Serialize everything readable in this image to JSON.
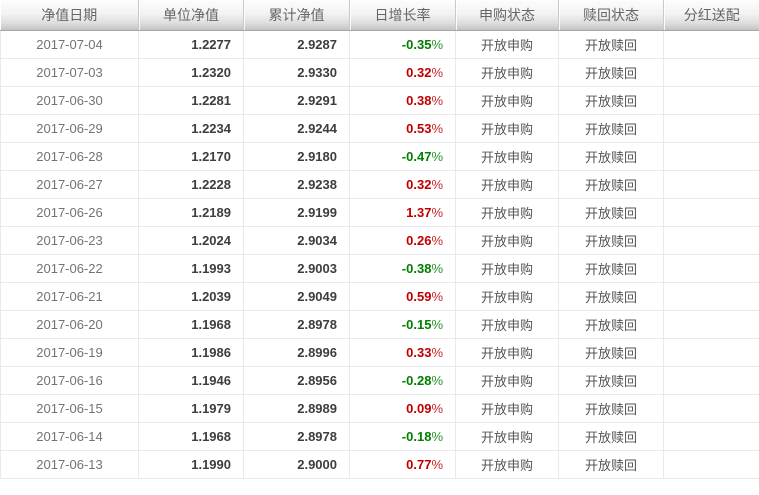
{
  "colors": {
    "growth_positive": "#c00000",
    "growth_negative": "#008000",
    "date_text": "#737373",
    "value_text": "#3d3d3d",
    "status_text": "#555555",
    "header_text": "#666666",
    "grid_line": "#e9e9e9"
  },
  "table": {
    "columns": [
      {
        "id": "date",
        "label": "净值日期",
        "align": "center"
      },
      {
        "id": "unit_nav",
        "label": "单位净值",
        "align": "right"
      },
      {
        "id": "acc_nav",
        "label": "累计净值",
        "align": "right"
      },
      {
        "id": "daily_growth",
        "label": "日增长率",
        "align": "right"
      },
      {
        "id": "purchase_status",
        "label": "申购状态",
        "align": "center"
      },
      {
        "id": "redeem_status",
        "label": "赎回状态",
        "align": "center"
      },
      {
        "id": "dividend",
        "label": "分红送配",
        "align": "center"
      }
    ],
    "rows": [
      {
        "date": "2017-07-04",
        "unit_nav": "1.2277",
        "acc_nav": "2.9287",
        "daily_growth": "-0.35%",
        "purchase_status": "开放申购",
        "redeem_status": "开放赎回",
        "dividend": ""
      },
      {
        "date": "2017-07-03",
        "unit_nav": "1.2320",
        "acc_nav": "2.9330",
        "daily_growth": "0.32%",
        "purchase_status": "开放申购",
        "redeem_status": "开放赎回",
        "dividend": ""
      },
      {
        "date": "2017-06-30",
        "unit_nav": "1.2281",
        "acc_nav": "2.9291",
        "daily_growth": "0.38%",
        "purchase_status": "开放申购",
        "redeem_status": "开放赎回",
        "dividend": ""
      },
      {
        "date": "2017-06-29",
        "unit_nav": "1.2234",
        "acc_nav": "2.9244",
        "daily_growth": "0.53%",
        "purchase_status": "开放申购",
        "redeem_status": "开放赎回",
        "dividend": ""
      },
      {
        "date": "2017-06-28",
        "unit_nav": "1.2170",
        "acc_nav": "2.9180",
        "daily_growth": "-0.47%",
        "purchase_status": "开放申购",
        "redeem_status": "开放赎回",
        "dividend": ""
      },
      {
        "date": "2017-06-27",
        "unit_nav": "1.2228",
        "acc_nav": "2.9238",
        "daily_growth": "0.32%",
        "purchase_status": "开放申购",
        "redeem_status": "开放赎回",
        "dividend": ""
      },
      {
        "date": "2017-06-26",
        "unit_nav": "1.2189",
        "acc_nav": "2.9199",
        "daily_growth": "1.37%",
        "purchase_status": "开放申购",
        "redeem_status": "开放赎回",
        "dividend": ""
      },
      {
        "date": "2017-06-23",
        "unit_nav": "1.2024",
        "acc_nav": "2.9034",
        "daily_growth": "0.26%",
        "purchase_status": "开放申购",
        "redeem_status": "开放赎回",
        "dividend": ""
      },
      {
        "date": "2017-06-22",
        "unit_nav": "1.1993",
        "acc_nav": "2.9003",
        "daily_growth": "-0.38%",
        "purchase_status": "开放申购",
        "redeem_status": "开放赎回",
        "dividend": ""
      },
      {
        "date": "2017-06-21",
        "unit_nav": "1.2039",
        "acc_nav": "2.9049",
        "daily_growth": "0.59%",
        "purchase_status": "开放申购",
        "redeem_status": "开放赎回",
        "dividend": ""
      },
      {
        "date": "2017-06-20",
        "unit_nav": "1.1968",
        "acc_nav": "2.8978",
        "daily_growth": "-0.15%",
        "purchase_status": "开放申购",
        "redeem_status": "开放赎回",
        "dividend": ""
      },
      {
        "date": "2017-06-19",
        "unit_nav": "1.1986",
        "acc_nav": "2.8996",
        "daily_growth": "0.33%",
        "purchase_status": "开放申购",
        "redeem_status": "开放赎回",
        "dividend": ""
      },
      {
        "date": "2017-06-16",
        "unit_nav": "1.1946",
        "acc_nav": "2.8956",
        "daily_growth": "-0.28%",
        "purchase_status": "开放申购",
        "redeem_status": "开放赎回",
        "dividend": ""
      },
      {
        "date": "2017-06-15",
        "unit_nav": "1.1979",
        "acc_nav": "2.8989",
        "daily_growth": "0.09%",
        "purchase_status": "开放申购",
        "redeem_status": "开放赎回",
        "dividend": ""
      },
      {
        "date": "2017-06-14",
        "unit_nav": "1.1968",
        "acc_nav": "2.8978",
        "daily_growth": "-0.18%",
        "purchase_status": "开放申购",
        "redeem_status": "开放赎回",
        "dividend": ""
      },
      {
        "date": "2017-06-13",
        "unit_nav": "1.1990",
        "acc_nav": "2.9000",
        "daily_growth": "0.77%",
        "purchase_status": "开放申购",
        "redeem_status": "开放赎回",
        "dividend": ""
      }
    ]
  }
}
